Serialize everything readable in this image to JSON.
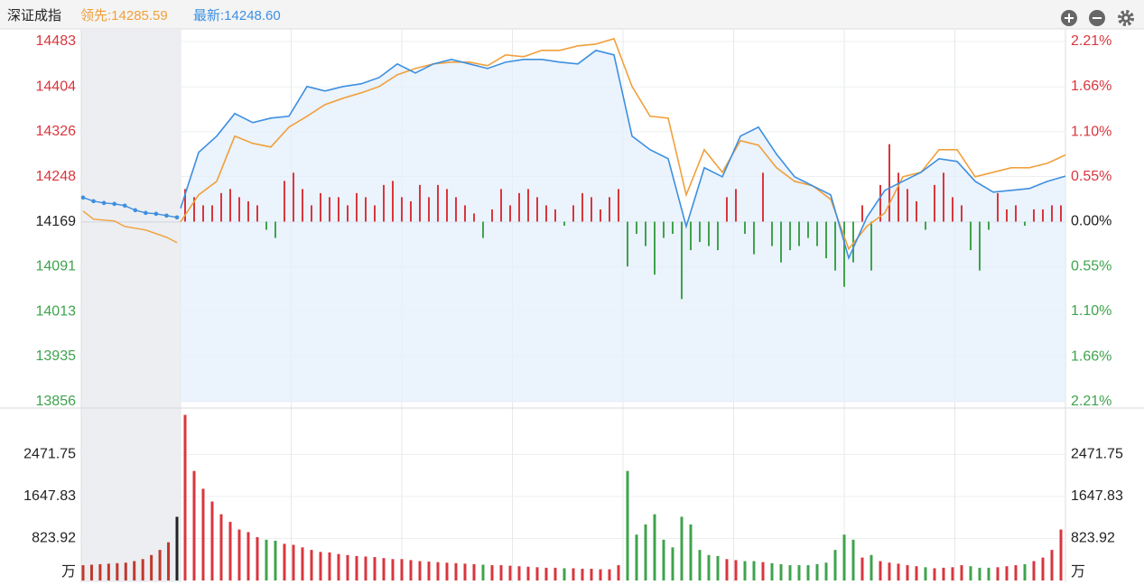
{
  "chart_data": {
    "type": "intraday",
    "title": "深证成指",
    "up_color": "#d9363e",
    "down_color": "#3fa34d",
    "grid": true,
    "ylim": [
      13856,
      14483
    ],
    "yticks": [
      14483,
      14404,
      14326,
      14248,
      14169,
      14091,
      14013,
      13935,
      13856
    ],
    "y2lim": [
      -2.21,
      2.21
    ],
    "y2ticks": [
      {
        "value": 2.21,
        "label": "2.21%"
      },
      {
        "value": 1.66,
        "label": "1.66%"
      },
      {
        "value": 1.1,
        "label": "1.10%"
      },
      {
        "value": 0.55,
        "label": "0.55%"
      },
      {
        "value": 0,
        "label": "0.00%"
      },
      {
        "value": -0.55,
        "label": "0.55%"
      },
      {
        "value": -1.1,
        "label": "1.10%"
      },
      {
        "value": -1.66,
        "label": "1.66%"
      },
      {
        "value": -2.21,
        "label": "2.21%"
      }
    ],
    "series": [
      {
        "name": "领先:14285.59",
        "color": "#f0a03c",
        "auction_values": [
          14187.9,
          14173.7,
          14172.1,
          14170.6,
          14161.1,
          14158.0,
          14154.9,
          14148.6,
          14142.3,
          14132.9
        ],
        "values": [
          14169.0,
          14216.1,
          14239.7,
          14318.3,
          14305.7,
          14299.4,
          14334.0,
          14352.9,
          14373.3,
          14384.3,
          14393.7,
          14404.7,
          14425.1,
          14436.1,
          14444.0,
          14447.1,
          14447.1,
          14440.9,
          14459.7,
          14456.6,
          14467.6,
          14467.6,
          14475.4,
          14478.6,
          14488.0,
          14404.7,
          14352.9,
          14349.7,
          14216.1,
          14294.7,
          14255.4,
          14310.4,
          14302.6,
          14263.3,
          14239.7,
          14231.9,
          14208.3,
          14121.9,
          14161.1,
          14184.7,
          14247.6,
          14255.4,
          14294.7,
          14294.7,
          14247.6,
          14255.4,
          14263.3,
          14263.3,
          14271.1,
          14285.59
        ]
      },
      {
        "name": "最新:14248.60",
        "color": "#3d8fe0",
        "auction_values": [
          14211.4,
          14205.1,
          14202.0,
          14200.4,
          14197.3,
          14189.4,
          14184.7,
          14183.1,
          14180.0,
          14176.9
        ],
        "values": [
          14192.6,
          14290.0,
          14318.3,
          14357.6,
          14341.9,
          14349.7,
          14352.9,
          14404.7,
          14396.9,
          14404.7,
          14409.4,
          14420.4,
          14444.0,
          14428.3,
          14444.0,
          14451.9,
          14444.0,
          14436.1,
          14447.1,
          14451.9,
          14451.9,
          14447.1,
          14444.0,
          14467.6,
          14459.7,
          14318.3,
          14294.7,
          14279.0,
          14161.1,
          14263.3,
          14247.6,
          14318.3,
          14334.0,
          14286.9,
          14247.6,
          14231.9,
          14216.1,
          14106.1,
          14176.9,
          14224.0,
          14239.7,
          14255.4,
          14279.0,
          14274.3,
          14239.7,
          14220.9,
          14224.0,
          14227.1,
          14239.7,
          14248.6
        ]
      }
    ],
    "indicator": {
      "axis": "y2",
      "values": [
        0.4,
        0.3,
        0.2,
        0.2,
        0.35,
        0.4,
        0.3,
        0.25,
        0.2,
        -0.1,
        -0.2,
        0.5,
        0.6,
        0.4,
        0.2,
        0.35,
        0.3,
        0.3,
        0.2,
        0.35,
        0.3,
        0.2,
        0.45,
        0.5,
        0.3,
        0.25,
        0.45,
        0.3,
        0.45,
        0.4,
        0.3,
        0.2,
        0.1,
        -0.2,
        0.15,
        0.4,
        0.2,
        0.35,
        0.4,
        0.3,
        0.2,
        0.15,
        -0.05,
        0.2,
        0.35,
        0.3,
        0.15,
        0.3,
        0.4,
        -0.55,
        -0.15,
        -0.3,
        -0.65,
        -0.2,
        -0.15,
        -0.95,
        -0.35,
        -0.25,
        -0.3,
        -0.35,
        0.3,
        0.4,
        -0.15,
        -0.4,
        0.6,
        -0.3,
        -0.5,
        -0.35,
        -0.3,
        -0.2,
        -0.3,
        -0.45,
        -0.6,
        -0.8,
        -0.5,
        0.2,
        -0.6,
        0.45,
        0.95,
        0.6,
        0.4,
        0.25,
        -0.1,
        0.45,
        0.6,
        0.3,
        0.2,
        -0.35,
        -0.6,
        -0.1,
        0.35,
        0.15,
        0.2,
        -0.05,
        0.15,
        0.15,
        0.2,
        0.2
      ]
    },
    "volume": {
      "vlim": [
        0,
        3295.68
      ],
      "vticks": [
        2471.75,
        1647.83,
        823.92,
        {
          "value": 0,
          "label": "万"
        }
      ],
      "auction_values": [
        300,
        310,
        320,
        330,
        340,
        350,
        380,
        420,
        500,
        600,
        750,
        1250
      ],
      "values": [
        3250,
        2150,
        1800,
        1550,
        1300,
        1150,
        1000,
        950,
        850,
        800,
        780,
        720,
        700,
        650,
        600,
        560,
        550,
        520,
        500,
        480,
        470,
        460,
        440,
        420,
        420,
        400,
        380,
        370,
        360,
        350,
        340,
        330,
        320,
        310,
        300,
        300,
        290,
        280,
        270,
        260,
        250,
        250,
        240,
        240,
        230,
        230,
        220,
        220,
        300,
        2150,
        900,
        1100,
        1300,
        800,
        650,
        1250,
        1100,
        600,
        500,
        480,
        420,
        400,
        380,
        380,
        360,
        340,
        320,
        300,
        300,
        300,
        320,
        350,
        600,
        900,
        800,
        450,
        500,
        380,
        350,
        330,
        300,
        280,
        260,
        240,
        250,
        260,
        300,
        280,
        250,
        250,
        260,
        280,
        300,
        320,
        380,
        450,
        600,
        1000
      ]
    }
  }
}
